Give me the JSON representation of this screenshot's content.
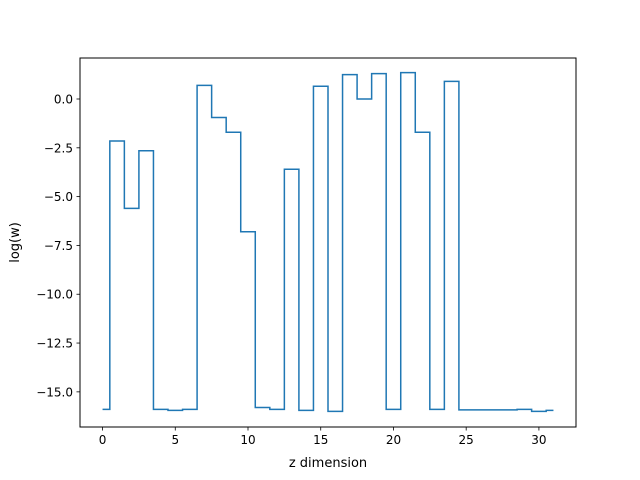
{
  "chart_data": {
    "type": "line",
    "drawstyle": "steps-mid",
    "title": "",
    "xlabel": "z dimension",
    "ylabel": "log(w)",
    "xlim": [
      -1.55,
      32.55
    ],
    "ylim": [
      -16.8,
      2.1
    ],
    "grid": false,
    "x_ticks": [
      0,
      5,
      10,
      15,
      20,
      25,
      30
    ],
    "x_tick_labels": [
      "0",
      "5",
      "10",
      "15",
      "20",
      "25",
      "30"
    ],
    "y_ticks": [
      0.0,
      -2.5,
      -5.0,
      -7.5,
      -10.0,
      -12.5,
      -15.0
    ],
    "y_tick_labels": [
      "0.0",
      "−2.5",
      "−5.0",
      "−7.5",
      "−10.0",
      "−12.5",
      "−15.0"
    ],
    "series": [
      {
        "color": "#1f77b4",
        "x": [
          0,
          1,
          2,
          3,
          4,
          5,
          6,
          7,
          8,
          9,
          10,
          11,
          12,
          13,
          14,
          15,
          16,
          17,
          18,
          19,
          20,
          21,
          22,
          23,
          24,
          25,
          26,
          27,
          28,
          29,
          30,
          31
        ],
        "y": [
          -15.9,
          -2.15,
          -5.6,
          -2.65,
          -15.9,
          -15.95,
          -15.9,
          0.7,
          -0.95,
          -1.7,
          -6.8,
          -15.8,
          -15.9,
          -3.6,
          -15.95,
          0.65,
          -16.0,
          1.25,
          0.0,
          1.3,
          -15.9,
          1.35,
          -1.7,
          -15.9,
          0.9,
          -15.92,
          -15.92,
          -15.92,
          -15.92,
          -15.9,
          -16.0,
          -15.95
        ]
      }
    ]
  }
}
